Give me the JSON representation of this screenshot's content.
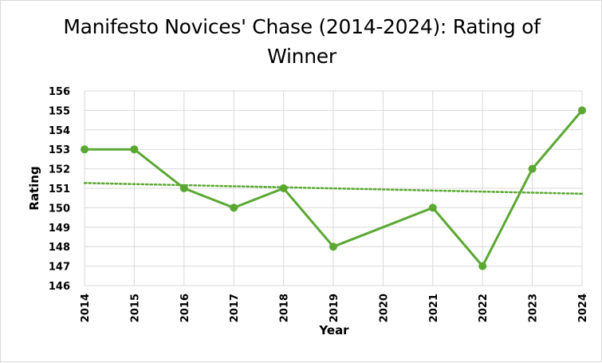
{
  "chart_data": {
    "type": "line",
    "title": "Manifesto Novices' Chase (2014-2024): Rating of Winner",
    "xlabel": "Year",
    "ylabel": "Rating",
    "x": [
      "2014",
      "2015",
      "2016",
      "2017",
      "2018",
      "2019",
      "2020",
      "2021",
      "2022",
      "2023",
      "2024"
    ],
    "ylim": [
      146,
      156
    ],
    "yticks": [
      146,
      147,
      148,
      149,
      150,
      151,
      152,
      153,
      154,
      155,
      156
    ],
    "series": [
      {
        "x": [
          "2014",
          "2015",
          "2016",
          "2017",
          "2018",
          "2019",
          "2021",
          "2022",
          "2023",
          "2024"
        ],
        "values": [
          153,
          153,
          151,
          150,
          151,
          148,
          150,
          147,
          152,
          155
        ],
        "color": "#5aa832"
      }
    ],
    "trendline": {
      "type": "linear",
      "style": "dotted",
      "color": "#5aa832"
    },
    "grid": true,
    "legend": "none"
  }
}
